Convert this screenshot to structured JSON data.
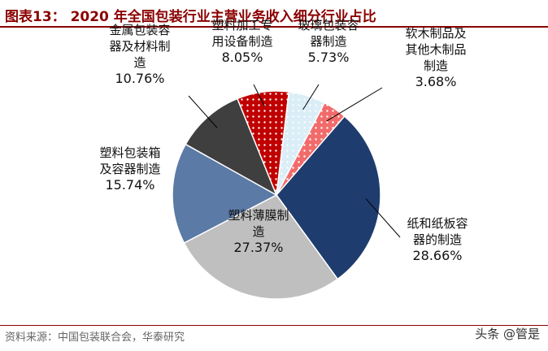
{
  "figure": {
    "title": "图表13：  2020 年全国包装行业主营业务收入细分行业占比",
    "source": "资料来源：中国包装联合会，华泰研究",
    "watermark": "头条 @管是"
  },
  "chart_data": {
    "type": "pie",
    "unit": "%",
    "slices": [
      {
        "label_lines": [
          "纸和纸板容",
          "器的制造"
        ],
        "value_text": "28.66%",
        "value": 28.66,
        "color": "#1f3c6e",
        "pattern": "none"
      },
      {
        "label_lines": [
          "塑料薄膜制",
          "造"
        ],
        "value_text": "27.37%",
        "value": 27.37,
        "color": "#bfbfbf",
        "pattern": "none"
      },
      {
        "label_lines": [
          "塑料包装箱",
          "及容器制造"
        ],
        "value_text": "15.74%",
        "value": 15.74,
        "color": "#5b7aa6",
        "pattern": "none"
      },
      {
        "label_lines": [
          "金属包装容",
          "器及材料制",
          "造"
        ],
        "value_text": "10.76%",
        "value": 10.76,
        "color": "#3f3f3f",
        "pattern": "none"
      },
      {
        "label_lines": [
          "塑料加工专",
          "用设备制造"
        ],
        "value_text": "8.05%",
        "value": 8.05,
        "color": "#c00000",
        "pattern": "dots"
      },
      {
        "label_lines": [
          "玻璃包装容",
          "器制造"
        ],
        "value_text": "5.73%",
        "value": 5.73,
        "color": "#dbeef7",
        "pattern": "dots-blue"
      },
      {
        "label_lines": [
          "软木制品及",
          "其他木制品",
          "制造"
        ],
        "value_text": "3.68%",
        "value": 3.68,
        "color": "#f26b6b",
        "pattern": "dots"
      }
    ]
  }
}
